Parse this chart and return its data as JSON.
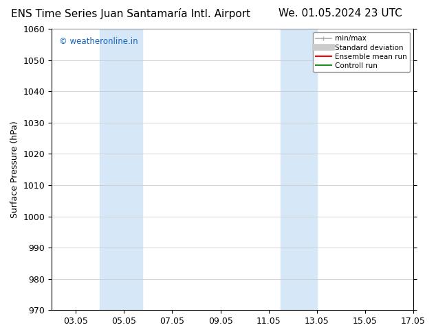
{
  "title_left": "ENS Time Series Juan Santamaría Intl. Airport",
  "title_right": "We. 01.05.2024 23 UTC",
  "ylabel": "Surface Pressure (hPa)",
  "ylim": [
    970,
    1060
  ],
  "yticks": [
    970,
    980,
    990,
    1000,
    1010,
    1020,
    1030,
    1040,
    1050,
    1060
  ],
  "xtick_positions": [
    1,
    3,
    5,
    7,
    9,
    11,
    13,
    15
  ],
  "xtick_labels": [
    "03.05",
    "05.05",
    "07.05",
    "09.05",
    "11.05",
    "13.05",
    "15.05",
    "17.05"
  ],
  "x_min": 0,
  "x_max": 15,
  "watermark": "© weatheronline.in",
  "watermark_color": "#1565C0",
  "shaded_regions": [
    {
      "x_start": 2.0,
      "x_end": 3.75,
      "color": "#D6E8F7"
    },
    {
      "x_start": 9.5,
      "x_end": 11.0,
      "color": "#D6E8F7"
    }
  ],
  "legend_items": [
    {
      "label": "min/max",
      "color": "#aaaaaa",
      "lw": 1.2
    },
    {
      "label": "Standard deviation",
      "color": "#cccccc",
      "lw": 7
    },
    {
      "label": "Ensemble mean run",
      "color": "#ff0000",
      "lw": 1.5
    },
    {
      "label": "Controll run",
      "color": "#228B22",
      "lw": 1.5
    }
  ],
  "background_color": "#ffffff",
  "grid_color": "#cccccc",
  "title_fontsize": 11,
  "axis_fontsize": 9,
  "tick_fontsize": 9
}
